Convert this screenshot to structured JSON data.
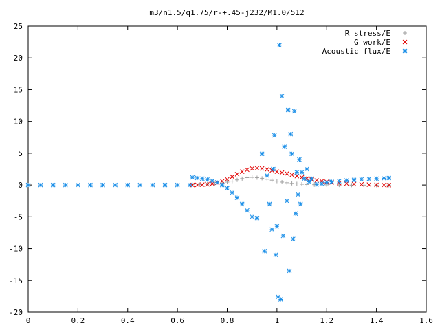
{
  "chart_data": {
    "type": "scatter",
    "title": "m3/n1.5/q1.75/r-+.45-j232/M1.0/512",
    "xlabel": "",
    "ylabel": "",
    "xlim": [
      0,
      1.6
    ],
    "ylim": [
      -20,
      25
    ],
    "x_ticks": [
      "0",
      "0.2",
      "0.4",
      "0.6",
      "0.8",
      "1",
      "1.2",
      "1.4",
      "1.6"
    ],
    "y_ticks": [
      "-20",
      "-15",
      "-10",
      "-5",
      "0",
      "5",
      "10",
      "15",
      "20",
      "25"
    ],
    "legend_position": "top-right",
    "grid": false,
    "series": [
      {
        "name": "R stress/E",
        "marker": "plus",
        "color": "#a0a0a0",
        "points": [
          [
            0.66,
            0.05
          ],
          [
            0.69,
            0.08
          ],
          [
            0.72,
            0.12
          ],
          [
            0.75,
            0.18
          ],
          [
            0.78,
            0.3
          ],
          [
            0.8,
            0.45
          ],
          [
            0.82,
            0.6
          ],
          [
            0.84,
            0.8
          ],
          [
            0.86,
            1.0
          ],
          [
            0.88,
            1.15
          ],
          [
            0.9,
            1.2
          ],
          [
            0.92,
            1.15
          ],
          [
            0.94,
            1.05
          ],
          [
            0.96,
            0.9
          ],
          [
            0.98,
            0.75
          ],
          [
            1.0,
            0.6
          ],
          [
            1.02,
            0.45
          ],
          [
            1.04,
            0.35
          ],
          [
            1.06,
            0.25
          ],
          [
            1.08,
            0.18
          ],
          [
            1.1,
            0.12
          ],
          [
            1.12,
            0.08
          ],
          [
            1.15,
            0.05
          ],
          [
            1.2,
            0.02
          ],
          [
            1.25,
            0.0
          ],
          [
            1.3,
            -0.02
          ],
          [
            1.35,
            -0.02
          ],
          [
            1.4,
            -0.03
          ],
          [
            1.45,
            -0.03
          ]
        ]
      },
      {
        "name": "G work/E",
        "marker": "cross",
        "color": "#e00000",
        "points": [
          [
            0.66,
            0.0
          ],
          [
            0.68,
            0.02
          ],
          [
            0.7,
            0.05
          ],
          [
            0.72,
            0.1
          ],
          [
            0.74,
            0.2
          ],
          [
            0.76,
            0.35
          ],
          [
            0.78,
            0.6
          ],
          [
            0.8,
            0.9
          ],
          [
            0.82,
            1.3
          ],
          [
            0.84,
            1.7
          ],
          [
            0.86,
            2.1
          ],
          [
            0.88,
            2.4
          ],
          [
            0.9,
            2.6
          ],
          [
            0.92,
            2.65
          ],
          [
            0.94,
            2.6
          ],
          [
            0.96,
            2.45
          ],
          [
            0.98,
            2.3
          ],
          [
            1.0,
            2.1
          ],
          [
            1.02,
            1.95
          ],
          [
            1.04,
            1.8
          ],
          [
            1.06,
            1.6
          ],
          [
            1.08,
            1.4
          ],
          [
            1.1,
            1.2
          ],
          [
            1.12,
            1.0
          ],
          [
            1.14,
            0.85
          ],
          [
            1.16,
            0.7
          ],
          [
            1.18,
            0.6
          ],
          [
            1.2,
            0.5
          ],
          [
            1.22,
            0.4
          ],
          [
            1.25,
            0.3
          ],
          [
            1.28,
            0.22
          ],
          [
            1.31,
            0.15
          ],
          [
            1.34,
            0.1
          ],
          [
            1.37,
            0.05
          ],
          [
            1.4,
            0.02
          ],
          [
            1.43,
            0.0
          ],
          [
            1.45,
            -0.02
          ]
        ]
      },
      {
        "name": "Acoustic flux/E",
        "marker": "star",
        "color": "#1e90e8",
        "points": [
          [
            0.0,
            0.0
          ],
          [
            0.05,
            0.0
          ],
          [
            0.1,
            0.0
          ],
          [
            0.15,
            0.0
          ],
          [
            0.2,
            0.0
          ],
          [
            0.25,
            0.0
          ],
          [
            0.3,
            0.0
          ],
          [
            0.35,
            0.0
          ],
          [
            0.4,
            0.0
          ],
          [
            0.45,
            0.0
          ],
          [
            0.5,
            0.0
          ],
          [
            0.55,
            0.0
          ],
          [
            0.6,
            0.0
          ],
          [
            0.65,
            0.0
          ],
          [
            0.66,
            1.2
          ],
          [
            0.68,
            1.1
          ],
          [
            0.7,
            1.0
          ],
          [
            0.72,
            0.85
          ],
          [
            0.74,
            0.65
          ],
          [
            0.76,
            0.4
          ],
          [
            0.78,
            0.0
          ],
          [
            0.8,
            -0.5
          ],
          [
            0.82,
            -1.2
          ],
          [
            0.84,
            -2.0
          ],
          [
            0.86,
            -3.0
          ],
          [
            0.88,
            -4.0
          ],
          [
            0.9,
            -5.0
          ],
          [
            0.92,
            -5.2
          ],
          [
            0.94,
            4.9
          ],
          [
            0.95,
            -10.4
          ],
          [
            0.96,
            1.5
          ],
          [
            0.97,
            -3.0
          ],
          [
            0.98,
            -7.0
          ],
          [
            0.985,
            2.5
          ],
          [
            0.99,
            7.8
          ],
          [
            0.995,
            -11.0
          ],
          [
            1.0,
            -6.5
          ],
          [
            1.005,
            -17.6
          ],
          [
            1.01,
            22.0
          ],
          [
            1.015,
            -18.0
          ],
          [
            1.02,
            14.0
          ],
          [
            1.025,
            -8.0
          ],
          [
            1.03,
            6.0
          ],
          [
            1.04,
            -2.5
          ],
          [
            1.045,
            11.8
          ],
          [
            1.05,
            -13.5
          ],
          [
            1.055,
            8.0
          ],
          [
            1.06,
            4.9
          ],
          [
            1.065,
            -8.5
          ],
          [
            1.07,
            11.6
          ],
          [
            1.075,
            -4.5
          ],
          [
            1.08,
            2.0
          ],
          [
            1.085,
            -1.5
          ],
          [
            1.09,
            4.0
          ],
          [
            1.095,
            -3.0
          ],
          [
            1.1,
            2.0
          ],
          [
            1.11,
            1.0
          ],
          [
            1.12,
            2.5
          ],
          [
            1.13,
            0.5
          ],
          [
            1.14,
            1.0
          ],
          [
            1.16,
            0.1
          ],
          [
            1.18,
            0.2
          ],
          [
            1.2,
            0.4
          ],
          [
            1.22,
            0.5
          ],
          [
            1.25,
            0.6
          ],
          [
            1.28,
            0.7
          ],
          [
            1.31,
            0.8
          ],
          [
            1.34,
            0.9
          ],
          [
            1.37,
            0.95
          ],
          [
            1.4,
            1.0
          ],
          [
            1.43,
            1.05
          ],
          [
            1.45,
            1.1
          ]
        ]
      }
    ]
  }
}
